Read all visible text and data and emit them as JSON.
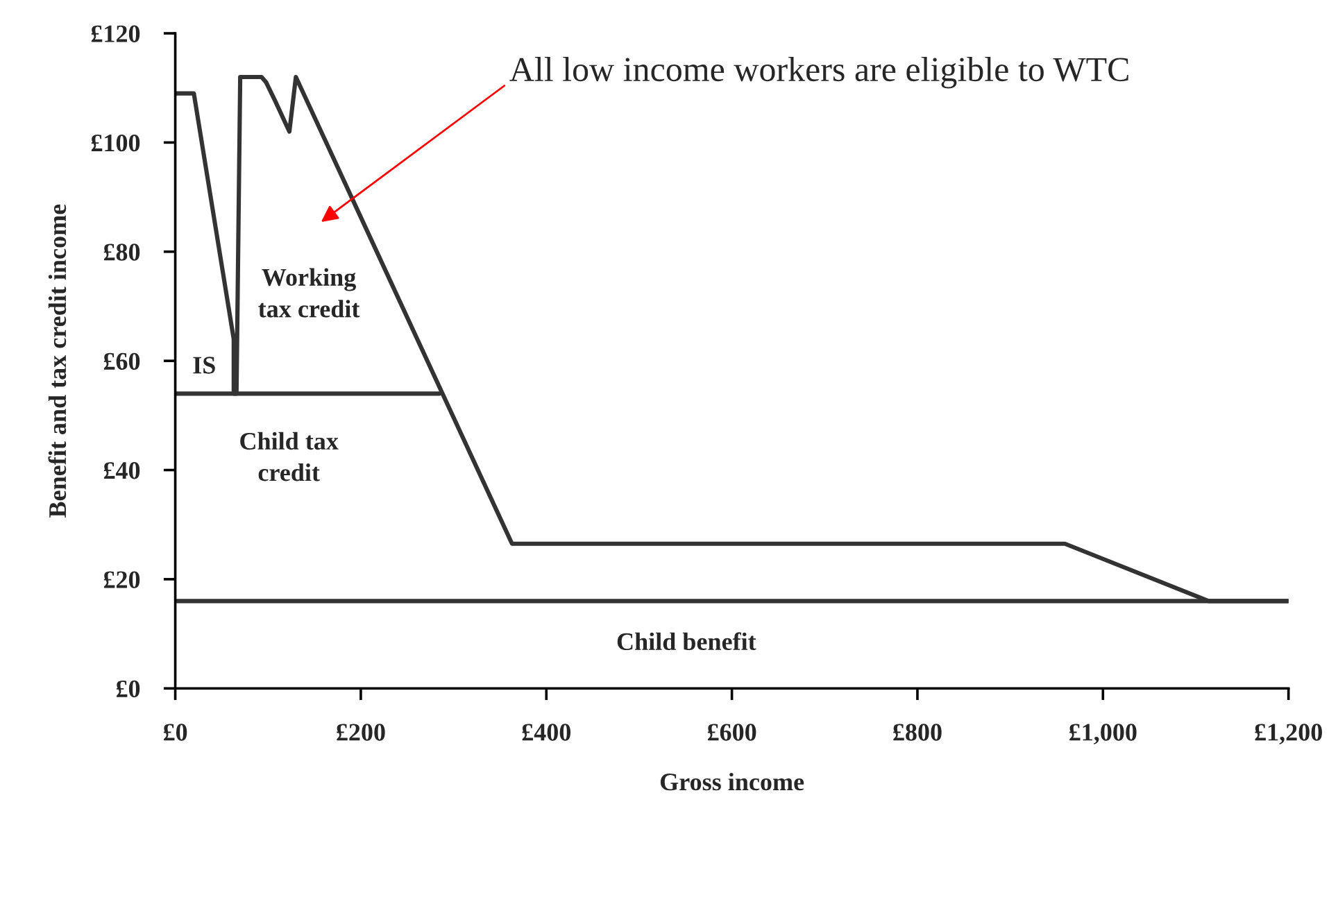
{
  "chart_data": {
    "type": "line",
    "xlabel": "Gross income",
    "ylabel": "Benefit and tax credit income",
    "series": [
      {
        "color": "#333333",
        "x": [
          0,
          20,
          63,
          63,
          66,
          70,
          93,
          98,
          108,
          123,
          130,
          363,
          959,
          1114,
          1200
        ],
        "values": [
          109,
          109,
          64,
          54,
          54,
          112,
          112,
          111,
          107.5,
          102,
          112,
          26.5,
          26.5,
          16,
          16
        ]
      },
      {
        "color": "#333333",
        "x": [
          0,
          285
        ],
        "values": [
          54,
          54
        ]
      },
      {
        "color": "#333333",
        "x": [
          0,
          1200
        ],
        "values": [
          16,
          16
        ]
      }
    ],
    "xlim": [
      0,
      1200
    ],
    "ylim": [
      0,
      120
    ],
    "xticks": [
      {
        "value": 0,
        "label": "£0"
      },
      {
        "value": 200,
        "label": "£200"
      },
      {
        "value": 400,
        "label": "£400"
      },
      {
        "value": 600,
        "label": "£600"
      },
      {
        "value": 800,
        "label": "£800"
      },
      {
        "value": 1000,
        "label": "£1,000"
      },
      {
        "value": 1200,
        "label": "£1,200"
      }
    ],
    "yticks": [
      {
        "value": 0,
        "label": "£0"
      },
      {
        "value": 20,
        "label": "£20"
      },
      {
        "value": 40,
        "label": "£40"
      },
      {
        "value": 60,
        "label": "£60"
      },
      {
        "value": 80,
        "label": "£80"
      },
      {
        "value": 100,
        "label": "£100"
      },
      {
        "value": 120,
        "label": "£120"
      }
    ],
    "annotations": [
      "IS",
      "Working\ntax credit",
      "Child tax\ncredit",
      "Child benefit",
      "All low income workers are eligible to WTC"
    ],
    "grid": false,
    "legend": false,
    "marker": "none",
    "line_style": "solid"
  }
}
